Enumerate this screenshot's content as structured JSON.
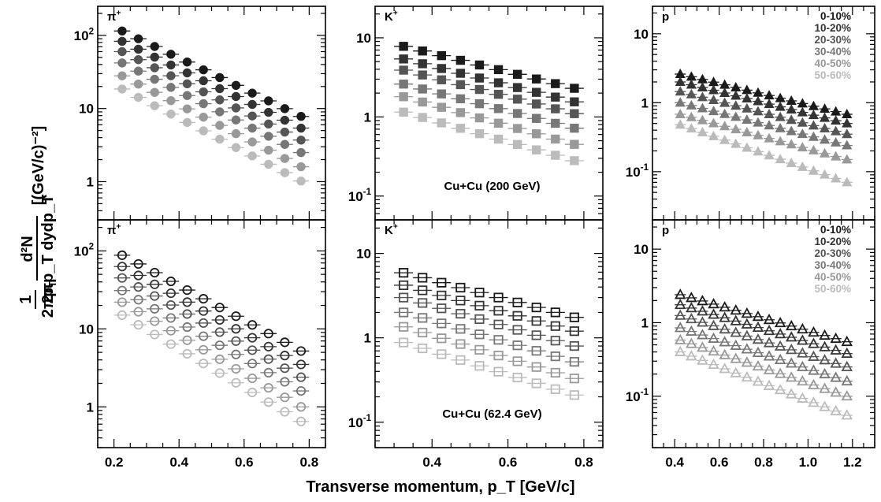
{
  "xlabel": "Transverse momentum, p_T [GeV/c]",
  "ylabel": {
    "numerator": "d²N",
    "denominator": "2πp_T dydp_T",
    "units": "[(GeV/c)⁻²]",
    "prefix": "1"
  },
  "centrality_colors": [
    "#1a1a1a",
    "#333333",
    "#555555",
    "#777777",
    "#999999",
    "#bbbbbb"
  ],
  "chart_data": [
    {
      "type": "scatter",
      "row": "top",
      "col": 0,
      "particle": "π⁺",
      "marker": "circle-filled",
      "energy_label": "",
      "yscale": "log",
      "xlim": [
        0.15,
        0.85
      ],
      "ylim": [
        0.3,
        250
      ],
      "xticks": [
        0.2,
        0.4,
        0.6,
        0.8
      ],
      "xticklabels": [
        "0.2",
        "0.4",
        "0.6",
        "0.8"
      ],
      "yticks": [
        1,
        10,
        100
      ],
      "yticklabels": [
        "1",
        "10",
        "10²"
      ],
      "x": [
        0.225,
        0.275,
        0.325,
        0.375,
        0.425,
        0.475,
        0.525,
        0.575,
        0.625,
        0.675,
        0.725,
        0.775
      ],
      "series": [
        {
          "name": "0-10%",
          "y_first": 115,
          "y_last": 7.8
        },
        {
          "name": "10-20%",
          "y_first": 83,
          "y_last": 5.4
        },
        {
          "name": "20-30%",
          "y_first": 60,
          "y_last": 3.7
        },
        {
          "name": "30-40%",
          "y_first": 42,
          "y_last": 2.5
        },
        {
          "name": "40-50%",
          "y_first": 28,
          "y_last": 1.6
        },
        {
          "name": "50-60%",
          "y_first": 18.5,
          "y_last": 1.02
        }
      ]
    },
    {
      "type": "scatter",
      "row": "top",
      "col": 1,
      "particle": "K⁺",
      "marker": "square-filled",
      "energy_label": "Cu+Cu (200 GeV)",
      "yscale": "log",
      "xlim": [
        0.25,
        0.85
      ],
      "ylim": [
        0.05,
        25
      ],
      "xticks": [
        0.4,
        0.6,
        0.8
      ],
      "xticklabels": [
        "0.4",
        "0.6",
        "0.8"
      ],
      "yticks": [
        0.1,
        1,
        10
      ],
      "yticklabels": [
        "10⁻¹",
        "1",
        "10"
      ],
      "x": [
        0.325,
        0.375,
        0.425,
        0.475,
        0.525,
        0.575,
        0.625,
        0.675,
        0.725,
        0.775
      ],
      "series": [
        {
          "name": "0-10%",
          "y_first": 7.8,
          "y_last": 2.3
        },
        {
          "name": "10-20%",
          "y_first": 5.4,
          "y_last": 1.55
        },
        {
          "name": "20-30%",
          "y_first": 3.9,
          "y_last": 1.1
        },
        {
          "name": "30-40%",
          "y_first": 2.6,
          "y_last": 0.72
        },
        {
          "name": "40-50%",
          "y_first": 1.8,
          "y_last": 0.45
        },
        {
          "name": "50-60%",
          "y_first": 1.15,
          "y_last": 0.28
        }
      ]
    },
    {
      "type": "scatter",
      "row": "top",
      "col": 2,
      "particle": "p",
      "marker": "triangle-filled",
      "energy_label": "",
      "yscale": "log",
      "xlim": [
        0.3,
        1.3
      ],
      "ylim": [
        0.02,
        25
      ],
      "xticks": [
        0.4,
        0.6,
        0.8,
        1.0,
        1.2
      ],
      "xticklabels": [
        "0.4",
        "0.6",
        "0.8",
        "1.0",
        "1.2"
      ],
      "yticks": [
        0.1,
        1,
        10
      ],
      "yticklabels": [
        "10⁻¹",
        "1",
        "10"
      ],
      "x": [
        0.425,
        0.475,
        0.525,
        0.575,
        0.625,
        0.675,
        0.725,
        0.775,
        0.825,
        0.875,
        0.925,
        0.975,
        1.025,
        1.075,
        1.125,
        1.175
      ],
      "series": [
        {
          "name": "0-10%",
          "y_first": 2.6,
          "y_last": 0.68
        },
        {
          "name": "10-20%",
          "y_first": 2.0,
          "y_last": 0.5
        },
        {
          "name": "20-30%",
          "y_first": 1.45,
          "y_last": 0.35
        },
        {
          "name": "30-40%",
          "y_first": 1.0,
          "y_last": 0.24
        },
        {
          "name": "40-50%",
          "y_first": 0.68,
          "y_last": 0.15
        },
        {
          "name": "50-60%",
          "y_first": 0.48,
          "y_last": 0.07
        }
      ],
      "legend": [
        "0-10%",
        "10-20%",
        "20-30%",
        "30-40%",
        "40-50%",
        "50-60%"
      ]
    },
    {
      "type": "scatter",
      "row": "bottom",
      "col": 0,
      "particle": "π⁺",
      "marker": "circle-open",
      "energy_label": "",
      "yscale": "log",
      "xlim": [
        0.15,
        0.85
      ],
      "ylim": [
        0.3,
        250
      ],
      "xticks": [
        0.2,
        0.4,
        0.6,
        0.8
      ],
      "xticklabels": [
        "0.2",
        "0.4",
        "0.6",
        "0.8"
      ],
      "yticks": [
        1,
        10,
        100
      ],
      "yticklabels": [
        "1",
        "10",
        "10²"
      ],
      "x": [
        0.225,
        0.275,
        0.325,
        0.375,
        0.425,
        0.475,
        0.525,
        0.575,
        0.625,
        0.675,
        0.725,
        0.775
      ],
      "series": [
        {
          "name": "0-10%",
          "y_first": 88,
          "y_last": 5.2
        },
        {
          "name": "10-20%",
          "y_first": 63,
          "y_last": 3.5
        },
        {
          "name": "20-30%",
          "y_first": 45,
          "y_last": 2.4
        },
        {
          "name": "30-40%",
          "y_first": 31,
          "y_last": 1.6
        },
        {
          "name": "40-50%",
          "y_first": 22,
          "y_last": 1.0
        },
        {
          "name": "50-60%",
          "y_first": 15,
          "y_last": 0.65
        }
      ]
    },
    {
      "type": "scatter",
      "row": "bottom",
      "col": 1,
      "particle": "K⁺",
      "marker": "square-open",
      "energy_label": "Cu+Cu (62.4 GeV)",
      "yscale": "log",
      "xlim": [
        0.25,
        0.85
      ],
      "ylim": [
        0.05,
        25
      ],
      "xticks": [
        0.4,
        0.6,
        0.8
      ],
      "xticklabels": [
        "0.4",
        "0.6",
        "0.8"
      ],
      "yticks": [
        0.1,
        1,
        10
      ],
      "yticklabels": [
        "10⁻¹",
        "1",
        "10"
      ],
      "x": [
        0.325,
        0.375,
        0.425,
        0.475,
        0.525,
        0.575,
        0.625,
        0.675,
        0.725,
        0.775
      ],
      "series": [
        {
          "name": "0-10%",
          "y_first": 5.9,
          "y_last": 1.75
        },
        {
          "name": "10-20%",
          "y_first": 4.2,
          "y_last": 1.2
        },
        {
          "name": "20-30%",
          "y_first": 3.0,
          "y_last": 0.8
        },
        {
          "name": "30-40%",
          "y_first": 2.0,
          "y_last": 0.52
        },
        {
          "name": "40-50%",
          "y_first": 1.35,
          "y_last": 0.33
        },
        {
          "name": "50-60%",
          "y_first": 0.88,
          "y_last": 0.21
        }
      ]
    },
    {
      "type": "scatter",
      "row": "bottom",
      "col": 2,
      "particle": "p",
      "marker": "triangle-open",
      "energy_label": "",
      "yscale": "log",
      "xlim": [
        0.3,
        1.3
      ],
      "ylim": [
        0.02,
        25
      ],
      "xticks": [
        0.4,
        0.6,
        0.8,
        1.0,
        1.2
      ],
      "xticklabels": [
        "0.4",
        "0.6",
        "0.8",
        "1.0",
        "1.2"
      ],
      "yticks": [
        0.1,
        1,
        10
      ],
      "yticklabels": [
        "10⁻¹",
        "1",
        "10"
      ],
      "x": [
        0.425,
        0.475,
        0.525,
        0.575,
        0.625,
        0.675,
        0.725,
        0.775,
        0.825,
        0.875,
        0.925,
        0.975,
        1.025,
        1.075,
        1.125,
        1.175
      ],
      "series": [
        {
          "name": "0-10%",
          "y_first": 2.4,
          "y_last": 0.55
        },
        {
          "name": "10-20%",
          "y_first": 1.75,
          "y_last": 0.38
        },
        {
          "name": "20-30%",
          "y_first": 1.25,
          "y_last": 0.25
        },
        {
          "name": "30-40%",
          "y_first": 0.85,
          "y_last": 0.16
        },
        {
          "name": "40-50%",
          "y_first": 0.58,
          "y_last": 0.1
        },
        {
          "name": "50-60%",
          "y_first": 0.4,
          "y_last": 0.055
        }
      ],
      "legend": [
        "0-10%",
        "10-20%",
        "20-30%",
        "30-40%",
        "40-50%",
        "50-60%"
      ]
    }
  ]
}
